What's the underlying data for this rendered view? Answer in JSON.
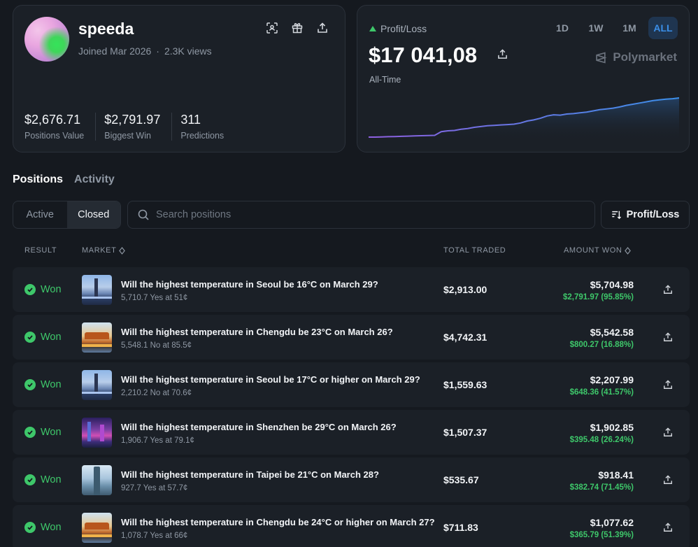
{
  "profile": {
    "username": "speeda",
    "joined": "Joined Mar 2026",
    "separator": "·",
    "views": "2.3K views",
    "stats": [
      {
        "value": "$2,676.71",
        "label": "Positions Value"
      },
      {
        "value": "$2,791.97",
        "label": "Biggest Win"
      },
      {
        "value": "311",
        "label": "Predictions"
      }
    ],
    "icons": [
      "scan-icon",
      "gift-icon",
      "share-icon"
    ]
  },
  "pnl": {
    "label": "Profit/Loss",
    "value": "$17 041,08",
    "period": "All-Time",
    "brand": "Polymarket",
    "timeframes": [
      "1D",
      "1W",
      "1M",
      "ALL"
    ],
    "active_timeframe": "ALL",
    "chart_data": {
      "type": "line",
      "series": [
        {
          "values": [
            0.0,
            0.0,
            0.005,
            0.01,
            0.015,
            0.02,
            0.025,
            0.03,
            0.035,
            0.04,
            0.045,
            0.14,
            0.16,
            0.17,
            0.2,
            0.22,
            0.25,
            0.27,
            0.29,
            0.3,
            0.31,
            0.32,
            0.33,
            0.36,
            0.41,
            0.44,
            0.48,
            0.54,
            0.57,
            0.56,
            0.59,
            0.6,
            0.62,
            0.64,
            0.67,
            0.7,
            0.72,
            0.74,
            0.77,
            0.81,
            0.84,
            0.87,
            0.9,
            0.93,
            0.95,
            0.97,
            0.98,
            1.0
          ]
        }
      ],
      "colors": {
        "start": "#8f5fe0",
        "end": "#3b8fe8"
      }
    }
  },
  "tabs": {
    "positions": "Positions",
    "activity": "Activity"
  },
  "filters": {
    "active": "Active",
    "closed": "Closed",
    "search_placeholder": "Search positions",
    "sort_label": "Profit/Loss"
  },
  "table": {
    "headers": {
      "result": "RESULT",
      "market": "MARKET",
      "total_traded": "TOTAL TRADED",
      "amount_won": "AMOUNT WON"
    },
    "rows": [
      {
        "result": "Won",
        "title": "Will the highest temperature in Seoul be 16°C on March 29?",
        "sub": "5,710.7 Yes at 51¢",
        "traded": "$2,913.00",
        "won": "$5,704.98",
        "pct": "$2,791.97 (95.85%)",
        "thumb": "seoul"
      },
      {
        "result": "Won",
        "title": "Will the highest temperature in Chengdu be 23°C on March 26?",
        "sub": "5,548.1 No at 85.5¢",
        "traded": "$4,742.31",
        "won": "$5,542.58",
        "pct": "$800.27 (16.88%)",
        "thumb": "chengdu"
      },
      {
        "result": "Won",
        "title": "Will the highest temperature in Seoul be 17°C or higher on March 29?",
        "sub": "2,210.2 No at 70.6¢",
        "traded": "$1,559.63",
        "won": "$2,207.99",
        "pct": "$648.36 (41.57%)",
        "thumb": "seoul"
      },
      {
        "result": "Won",
        "title": "Will the highest temperature in Shenzhen be 29°C on March 26?",
        "sub": "1,906.7 Yes at 79.1¢",
        "traded": "$1,507.37",
        "won": "$1,902.85",
        "pct": "$395.48 (26.24%)",
        "thumb": "shenzhen"
      },
      {
        "result": "Won",
        "title": "Will the highest temperature in Taipei be 21°C on March 28?",
        "sub": "927.7 Yes at 57.7¢",
        "traded": "$535.67",
        "won": "$918.41",
        "pct": "$382.74 (71.45%)",
        "thumb": "taipei"
      },
      {
        "result": "Won",
        "title": "Will the highest temperature in Chengdu be 24°C or higher on March 27?",
        "sub": "1,078.7 Yes at 66¢",
        "traded": "$711.83",
        "won": "$1,077.62",
        "pct": "$365.79 (51.39%)",
        "thumb": "chengdu"
      }
    ]
  },
  "colors": {
    "accent": "#3b8fe8",
    "positive": "#3ec76a",
    "background": "#15191f",
    "card": "#1b2027"
  }
}
